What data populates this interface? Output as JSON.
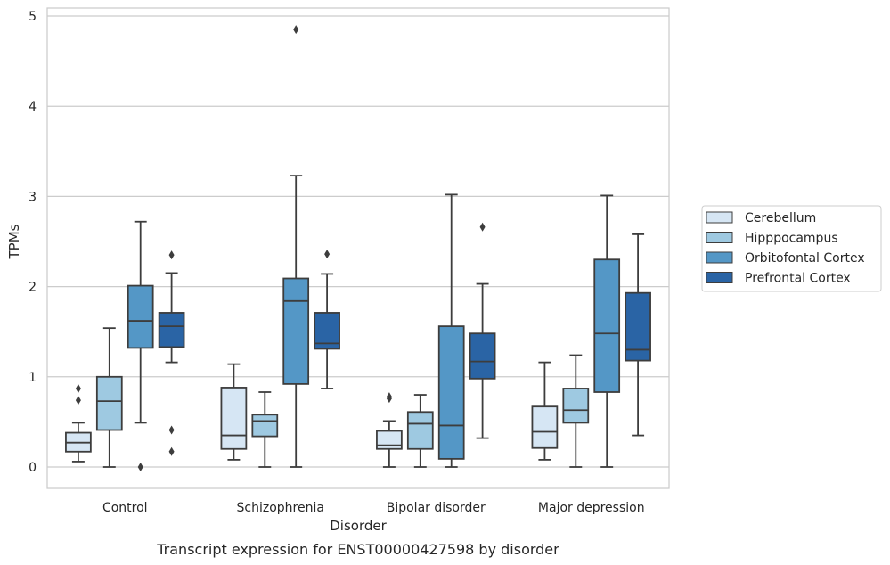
{
  "chart_data": {
    "type": "box",
    "title": "Transcript expression for ENST00000427598 by disorder",
    "xlabel": "Disorder",
    "ylabel": "TPMs",
    "ylim": [
      -0.22,
      5.1
    ],
    "yticks": [
      "0",
      "1",
      "2",
      "3",
      "4",
      "5"
    ],
    "grid": true,
    "legend_position": "right-outside",
    "categories": [
      "Control",
      "Schizophrenia",
      "Bipolar disorder",
      "Major depression"
    ],
    "series": [
      {
        "name": "Cerebellum",
        "color": "#d6e6f4",
        "boxes": [
          {
            "whislo": 0.06,
            "q1": 0.17,
            "med": 0.27,
            "q3": 0.38,
            "whishi": 0.49,
            "fliers": [
              0.74,
              0.87
            ]
          },
          {
            "whislo": 0.08,
            "q1": 0.2,
            "med": 0.35,
            "q3": 0.88,
            "whishi": 1.14,
            "fliers": []
          },
          {
            "whislo": 0.0,
            "q1": 0.2,
            "med": 0.24,
            "q3": 0.4,
            "whishi": 0.51,
            "fliers": [
              0.76,
              0.78
            ]
          },
          {
            "whislo": 0.08,
            "q1": 0.21,
            "med": 0.39,
            "q3": 0.67,
            "whishi": 1.16,
            "fliers": []
          }
        ]
      },
      {
        "name": "Hipppocampus",
        "color": "#9ec9e1",
        "boxes": [
          {
            "whislo": 0.0,
            "q1": 0.41,
            "med": 0.73,
            "q3": 1.0,
            "whishi": 1.54,
            "fliers": []
          },
          {
            "whislo": 0.0,
            "q1": 0.34,
            "med": 0.51,
            "q3": 0.58,
            "whishi": 0.83,
            "fliers": []
          },
          {
            "whislo": 0.0,
            "q1": 0.2,
            "med": 0.48,
            "q3": 0.61,
            "whishi": 0.8,
            "fliers": []
          },
          {
            "whislo": 0.0,
            "q1": 0.49,
            "med": 0.63,
            "q3": 0.87,
            "whishi": 1.24,
            "fliers": []
          }
        ]
      },
      {
        "name": "Orbitofontal Cortex",
        "color": "#5497c6",
        "boxes": [
          {
            "whislo": 0.49,
            "q1": 1.32,
            "med": 1.62,
            "q3": 2.01,
            "whishi": 2.72,
            "fliers": [
              0.0
            ]
          },
          {
            "whislo": 0.0,
            "q1": 0.92,
            "med": 1.84,
            "q3": 2.09,
            "whishi": 3.23,
            "fliers": [
              4.85
            ]
          },
          {
            "whislo": 0.0,
            "q1": 0.09,
            "med": 0.46,
            "q3": 1.56,
            "whishi": 3.02,
            "fliers": []
          },
          {
            "whislo": 0.0,
            "q1": 0.83,
            "med": 1.48,
            "q3": 2.3,
            "whishi": 3.01,
            "fliers": []
          }
        ]
      },
      {
        "name": "Prefrontal Cortex",
        "color": "#2a64a5",
        "boxes": [
          {
            "whislo": 1.16,
            "q1": 1.33,
            "med": 1.56,
            "q3": 1.71,
            "whishi": 2.15,
            "fliers": [
              0.17,
              0.41,
              2.35
            ]
          },
          {
            "whislo": 0.87,
            "q1": 1.31,
            "med": 1.37,
            "q3": 1.71,
            "whishi": 2.14,
            "fliers": [
              2.36
            ]
          },
          {
            "whislo": 0.32,
            "q1": 0.98,
            "med": 1.17,
            "q3": 1.48,
            "whishi": 2.03,
            "fliers": [
              2.66
            ]
          },
          {
            "whislo": 0.35,
            "q1": 1.18,
            "med": 1.3,
            "q3": 1.93,
            "whishi": 2.58,
            "fliers": []
          }
        ]
      }
    ]
  }
}
